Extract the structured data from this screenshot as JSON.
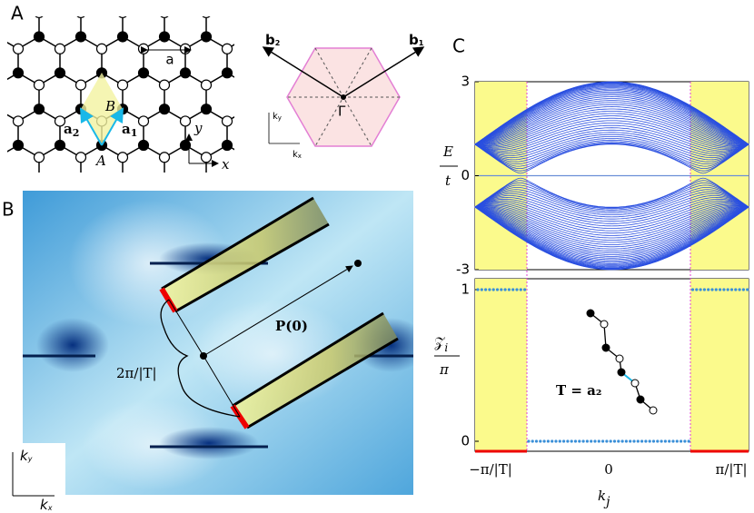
{
  "panel_a": {
    "label": "A",
    "lattice": {
      "spacing": "a",
      "site_a": "A",
      "site_b": "B",
      "vec_a1": {
        "base": "a",
        "sub": "1"
      },
      "vec_a2": {
        "base": "a",
        "sub": "2"
      },
      "axis_x": "x",
      "axis_y": "y"
    },
    "zone": {
      "b1": {
        "base": "b",
        "sub": "1"
      },
      "b2": {
        "base": "b",
        "sub": "2"
      },
      "gamma": "Γ",
      "kx": {
        "base": "k",
        "sub": "x"
      },
      "ky": {
        "base": "k",
        "sub": "y"
      }
    }
  },
  "panel_b": {
    "label": "B",
    "width_label": "2π/|T|",
    "polarization": "P(0)",
    "kx": {
      "base": "k",
      "sub": "x"
    },
    "ky": {
      "base": "k",
      "sub": "y"
    }
  },
  "panel_c": {
    "label": "C",
    "top": {
      "ylabel_num": "E",
      "ylabel_den": "t",
      "ylim": [
        -3,
        3
      ],
      "yticks": [
        3,
        0,
        -3
      ]
    },
    "bottom": {
      "ylabel_num": {
        "base": "𝒵",
        "sub": "i"
      },
      "ylabel_den": "π",
      "ylim": [
        0,
        1
      ],
      "yticks": [
        1,
        0
      ],
      "inset": "T = a₂"
    },
    "xticks": [
      "−π/|T|",
      "0",
      "π/|T|"
    ],
    "xlabel": {
      "base": "k",
      "sub": "j"
    }
  }
}
